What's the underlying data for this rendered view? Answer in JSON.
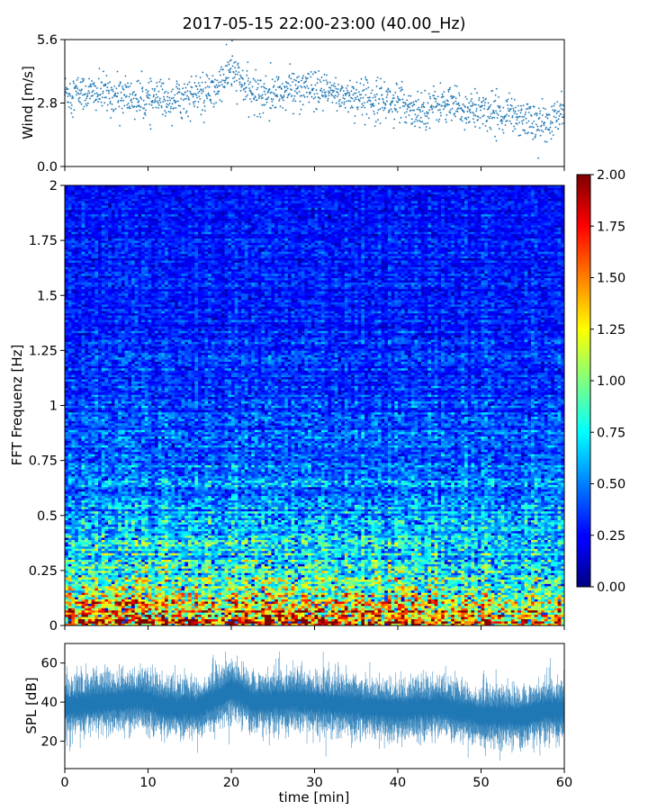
{
  "title": "2017-05-15 22:00-23:00 (40.00_Hz)",
  "chart_data": [
    {
      "id": "wind",
      "type": "scatter",
      "ylabel": "Wind [m/s]",
      "xlim": [
        0,
        60
      ],
      "ylim": [
        0,
        5.6
      ],
      "xticks": [
        0,
        10,
        20,
        30,
        40,
        50,
        60
      ],
      "yticks": [
        {
          "value": 0,
          "label": "0.0"
        },
        {
          "value": 2.8,
          "label": "2.8"
        },
        {
          "value": 5.6,
          "label": "5.6"
        }
      ],
      "trend": [
        {
          "t": 0,
          "v": 3.3
        },
        {
          "t": 5,
          "v": 3.2
        },
        {
          "t": 10,
          "v": 2.9
        },
        {
          "t": 15,
          "v": 3.1
        },
        {
          "t": 18,
          "v": 3.3
        },
        {
          "t": 20,
          "v": 4.3
        },
        {
          "t": 22,
          "v": 3.3
        },
        {
          "t": 25,
          "v": 3.2
        },
        {
          "t": 28,
          "v": 3.5
        },
        {
          "t": 30,
          "v": 3.3
        },
        {
          "t": 35,
          "v": 3.1
        },
        {
          "t": 38,
          "v": 3.0
        },
        {
          "t": 40,
          "v": 2.8
        },
        {
          "t": 43,
          "v": 2.5
        },
        {
          "t": 45,
          "v": 2.8
        },
        {
          "t": 48,
          "v": 2.5
        },
        {
          "t": 50,
          "v": 2.5
        },
        {
          "t": 55,
          "v": 2.2
        },
        {
          "t": 58,
          "v": 1.8
        },
        {
          "t": 60,
          "v": 2.4
        }
      ],
      "color": "#1f77b4"
    },
    {
      "id": "spectrogram",
      "type": "heatmap",
      "ylabel": "FFT Frequenz [Hz]",
      "xlim": [
        0,
        60
      ],
      "ylim": [
        0,
        2
      ],
      "yticks": [
        {
          "value": 0,
          "label": "0"
        },
        {
          "value": 0.25,
          "label": "0.25"
        },
        {
          "value": 0.5,
          "label": "0.5"
        },
        {
          "value": 0.75,
          "label": "0.75"
        },
        {
          "value": 1,
          "label": "1"
        },
        {
          "value": 1.25,
          "label": "1.25"
        },
        {
          "value": 1.5,
          "label": "1.5"
        },
        {
          "value": 1.75,
          "label": "1.75"
        },
        {
          "value": 2,
          "label": "2"
        }
      ],
      "colorbar": {
        "colormap": "jet",
        "range": [
          0,
          2
        ],
        "ticks": [
          "0.00",
          "0.25",
          "0.50",
          "0.75",
          "1.00",
          "1.25",
          "1.50",
          "1.75",
          "2.00"
        ]
      },
      "intensity_profile": [
        {
          "f": 0.0,
          "level": 1.8
        },
        {
          "f": 0.05,
          "level": 1.55
        },
        {
          "f": 0.1,
          "level": 1.2
        },
        {
          "f": 0.2,
          "level": 0.9
        },
        {
          "f": 0.3,
          "level": 0.75
        },
        {
          "f": 0.5,
          "level": 0.55
        },
        {
          "f": 0.75,
          "level": 0.45
        },
        {
          "f": 1.0,
          "level": 0.38
        },
        {
          "f": 1.5,
          "level": 0.3
        },
        {
          "f": 2.0,
          "level": 0.27
        }
      ]
    },
    {
      "id": "spl",
      "type": "area",
      "ylabel": "SPL [dB]",
      "xlabel": "time [min]",
      "xlim": [
        0,
        60
      ],
      "ylim": [
        6,
        70
      ],
      "xticks": [
        0,
        10,
        20,
        30,
        40,
        50,
        60
      ],
      "yticks": [
        {
          "value": 20,
          "label": "20"
        },
        {
          "value": 40,
          "label": "40"
        },
        {
          "value": 60,
          "label": "60"
        }
      ],
      "trend": [
        {
          "t": 0,
          "v": 38
        },
        {
          "t": 5,
          "v": 40
        },
        {
          "t": 9,
          "v": 42
        },
        {
          "t": 12,
          "v": 38
        },
        {
          "t": 16,
          "v": 37
        },
        {
          "t": 20,
          "v": 46
        },
        {
          "t": 23,
          "v": 40
        },
        {
          "t": 28,
          "v": 41
        },
        {
          "t": 30,
          "v": 40
        },
        {
          "t": 35,
          "v": 38
        },
        {
          "t": 40,
          "v": 36
        },
        {
          "t": 45,
          "v": 38
        },
        {
          "t": 50,
          "v": 33
        },
        {
          "t": 55,
          "v": 33
        },
        {
          "t": 58,
          "v": 36
        },
        {
          "t": 60,
          "v": 36
        }
      ],
      "band_range": [
        28,
        52
      ],
      "color": "#1f77b4"
    }
  ]
}
